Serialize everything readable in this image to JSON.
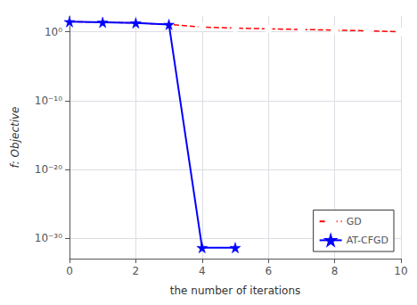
{
  "chart_data": {
    "type": "line",
    "xlabel": "the number of iterations",
    "ylabel": "f: Objective",
    "log": "y",
    "xlim": [
      0,
      10
    ],
    "xticks": [
      0,
      2,
      4,
      6,
      8,
      10
    ],
    "ylim": [
      1e-33,
      200
    ],
    "yticks": [
      {
        "value": 1,
        "label": "10⁰"
      },
      {
        "value": 1e-10,
        "label": "10⁻¹⁰"
      },
      {
        "value": 1e-20,
        "label": "10⁻²⁰"
      },
      {
        "value": 1e-30,
        "label": "10⁻³⁰"
      }
    ],
    "grid": true,
    "legend": "lower right",
    "series": [
      {
        "name": "GD",
        "color": "#FF0000",
        "marker": "circle",
        "line_style": "dashed",
        "x": [
          0,
          1,
          2,
          3,
          4,
          5,
          6,
          7,
          8,
          9,
          10
        ],
        "values": [
          30,
          25,
          20,
          12,
          5.0,
          3.5,
          2.8,
          2.2,
          1.8,
          1.4,
          1.05
        ]
      },
      {
        "name": "AT-CFGD",
        "color": "#0000FF",
        "marker": "star",
        "line_style": "solid",
        "x": [
          0,
          1,
          2,
          3,
          4,
          5
        ],
        "values": [
          30,
          25,
          20,
          12,
          4e-32,
          4e-32
        ]
      }
    ]
  }
}
